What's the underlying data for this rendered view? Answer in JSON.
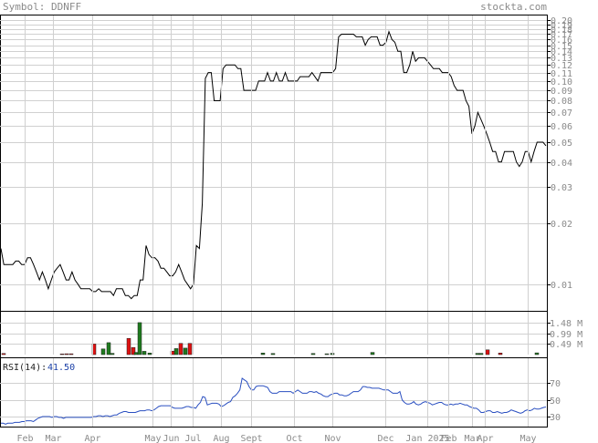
{
  "header": {
    "symbol_text": "Symbol: DDNFF",
    "site_text": "stockta.com"
  },
  "colors": {
    "price_line": "#000000",
    "grid": "#d0d0d0",
    "volume_up": "#1e7a1e",
    "volume_down": "#dd1111",
    "rsi_line": "#2a4fc0",
    "text": "#8a8a8a"
  },
  "chart_data": [
    {
      "type": "line",
      "panel": "price",
      "y_scale": "log",
      "ylim": [
        0.0074,
        0.21
      ],
      "y_ticks": [
        "0.01",
        "0.02",
        "0.03",
        "0.04",
        "0.05",
        "0.06",
        "0.07",
        "0.08",
        "0.09",
        "0.10",
        "0.11",
        "0.12",
        "0.13",
        "0.14",
        "0.15",
        "0.16",
        "0.17",
        "0.18",
        "0.19",
        "0.20"
      ],
      "x_labels": [
        "Feb",
        "Mar",
        "Apr",
        "May",
        "Jun",
        "Jul",
        "Aug",
        "Sept",
        "Oct",
        "Nov",
        "Dec",
        "Jan 2025",
        "Feb",
        "Mar",
        "Apr",
        "May"
      ],
      "grid": true,
      "series": [
        {
          "values": [
            0.015,
            0.0125,
            0.0125,
            0.0125,
            0.0125,
            0.013,
            0.013,
            0.0125,
            0.0125,
            0.0135,
            0.0135,
            0.0125,
            0.0115,
            0.0105,
            0.0115,
            0.0105,
            0.0095,
            0.0105,
            0.0115,
            0.012,
            0.0125,
            0.0115,
            0.0105,
            0.0105,
            0.0115,
            0.0105,
            0.01,
            0.0095,
            0.0095,
            0.0095,
            0.0095,
            0.0092,
            0.0092,
            0.0095,
            0.0092,
            0.0092,
            0.0092,
            0.0092,
            0.0088,
            0.0095,
            0.0095,
            0.0095,
            0.0088,
            0.0088,
            0.0085,
            0.0088,
            0.0088,
            0.0105,
            0.0105,
            0.0155,
            0.014,
            0.0135,
            0.0135,
            0.013,
            0.012,
            0.012,
            0.0115,
            0.011,
            0.011,
            0.0115,
            0.0125,
            0.0115,
            0.0105,
            0.01,
            0.0095,
            0.01,
            0.0155,
            0.015,
            0.025,
            0.103,
            0.11,
            0.11,
            0.08,
            0.08,
            0.08,
            0.115,
            0.12,
            0.12,
            0.12,
            0.12,
            0.115,
            0.115,
            0.09,
            0.09,
            0.09,
            0.09,
            0.09,
            0.1,
            0.1,
            0.1,
            0.11,
            0.1,
            0.1,
            0.11,
            0.1,
            0.1,
            0.11,
            0.1,
            0.1,
            0.1,
            0.1,
            0.105,
            0.105,
            0.105,
            0.105,
            0.11,
            0.105,
            0.1,
            0.11,
            0.11,
            0.11,
            0.11,
            0.11,
            0.115,
            0.165,
            0.17,
            0.17,
            0.17,
            0.17,
            0.17,
            0.165,
            0.165,
            0.165,
            0.15,
            0.16,
            0.165,
            0.165,
            0.165,
            0.15,
            0.15,
            0.155,
            0.175,
            0.16,
            0.155,
            0.14,
            0.14,
            0.11,
            0.11,
            0.12,
            0.14,
            0.125,
            0.13,
            0.13,
            0.13,
            0.125,
            0.12,
            0.115,
            0.115,
            0.115,
            0.11,
            0.11,
            0.11,
            0.105,
            0.095,
            0.09,
            0.09,
            0.09,
            0.08,
            0.075,
            0.055,
            0.06,
            0.07,
            0.065,
            0.06,
            0.055,
            0.05,
            0.045,
            0.045,
            0.04,
            0.04,
            0.045,
            0.045,
            0.045,
            0.045,
            0.04,
            0.038,
            0.04,
            0.045,
            0.045,
            0.04,
            0.045,
            0.05,
            0.05,
            0.05,
            0.048
          ]
        }
      ]
    },
    {
      "type": "bar",
      "panel": "volume",
      "y_ticks": [
        "1.48 M",
        "0.99 M",
        "0.49 M"
      ],
      "ylim": [
        0,
        1.98
      ],
      "unit": "M",
      "bars": [
        {
          "month": "Feb",
          "value": 0.05,
          "dir": "down"
        },
        {
          "month": "Mar",
          "value": 0.03,
          "dir": "down"
        },
        {
          "month": "Mar",
          "value": 0.04,
          "dir": "down"
        },
        {
          "month": "Mar",
          "value": 0.04,
          "dir": "down"
        },
        {
          "month": "Apr",
          "value": 0.49,
          "dir": "down"
        },
        {
          "month": "Apr",
          "value": 0.26,
          "dir": "up"
        },
        {
          "month": "Apr",
          "value": 0.55,
          "dir": "up"
        },
        {
          "month": "Apr",
          "value": 0.06,
          "dir": "up"
        },
        {
          "month": "Apr",
          "value": 0.75,
          "dir": "down"
        },
        {
          "month": "Apr",
          "value": 0.33,
          "dir": "down"
        },
        {
          "month": "May",
          "value": 0.1,
          "dir": "up"
        },
        {
          "month": "May",
          "value": 1.48,
          "dir": "up"
        },
        {
          "month": "May",
          "value": 0.15,
          "dir": "up"
        },
        {
          "month": "May",
          "value": 0.07,
          "dir": "up"
        },
        {
          "month": "Jun",
          "value": 0.16,
          "dir": "down"
        },
        {
          "month": "Jun",
          "value": 0.28,
          "dir": "up"
        },
        {
          "month": "Jun",
          "value": 0.52,
          "dir": "down"
        },
        {
          "month": "Jun",
          "value": 0.3,
          "dir": "up"
        },
        {
          "month": "Jul",
          "value": 0.52,
          "dir": "down"
        },
        {
          "month": "Sept",
          "value": 0.07,
          "dir": "up"
        },
        {
          "month": "Sept",
          "value": 0.05,
          "dir": "up"
        },
        {
          "month": "Oct",
          "value": 0.05,
          "dir": "up"
        },
        {
          "month": "Nov",
          "value": 0.04,
          "dir": "up"
        },
        {
          "month": "Nov",
          "value": 0.06,
          "dir": "up"
        },
        {
          "month": "Dec",
          "value": 0.1,
          "dir": "up"
        },
        {
          "month": "Apr",
          "value": 0.06,
          "dir": "up"
        },
        {
          "month": "Apr",
          "value": 0.06,
          "dir": "up"
        },
        {
          "month": "Apr",
          "value": 0.22,
          "dir": "down"
        },
        {
          "month": "Apr",
          "value": 0.07,
          "dir": "down"
        },
        {
          "month": "May",
          "value": 0.08,
          "dir": "up"
        }
      ]
    },
    {
      "type": "line",
      "panel": "rsi",
      "label": "RSI(14):",
      "current_value": "41.50",
      "ylim": [
        18,
        100
      ],
      "y_ticks": [
        "70",
        "50",
        "30"
      ],
      "series": [
        {
          "values": [
            22,
            22,
            21,
            22,
            22,
            22,
            23,
            23,
            23,
            24,
            24,
            25,
            25,
            25,
            24,
            26,
            28,
            29,
            30,
            30,
            30,
            30,
            29,
            30,
            30,
            29,
            29,
            28,
            29,
            29,
            29,
            29,
            29,
            29,
            29,
            29,
            29,
            29,
            29,
            29,
            30,
            30,
            31,
            31,
            30,
            31,
            31,
            30,
            31,
            32,
            32,
            34,
            35,
            36,
            36,
            35,
            35,
            35,
            35,
            36,
            37,
            37,
            37,
            38,
            38,
            37,
            38,
            40,
            42,
            43,
            43,
            43,
            43,
            43,
            41,
            40,
            40,
            40,
            40,
            41,
            42,
            42,
            41,
            41,
            40,
            44,
            47,
            54,
            53,
            44,
            45,
            46,
            46,
            46,
            45,
            42,
            43,
            45,
            47,
            48,
            53,
            55,
            58,
            62,
            76,
            74,
            72,
            66,
            62,
            62,
            66,
            67,
            67,
            67,
            66,
            65,
            60,
            58,
            58,
            58,
            60,
            60,
            60,
            60,
            60,
            60,
            58,
            60,
            62,
            60,
            58,
            58,
            58,
            60,
            60,
            59,
            60,
            58,
            57,
            55,
            54,
            54,
            56,
            57,
            58,
            58,
            56,
            56,
            55,
            55,
            56,
            58,
            60,
            60,
            60,
            62,
            66,
            66,
            65,
            65,
            64,
            64,
            64,
            64,
            63,
            62,
            62,
            62,
            60,
            58,
            58,
            58,
            60,
            50,
            47,
            45,
            45,
            46,
            48,
            45,
            44,
            45,
            47,
            48,
            47,
            46,
            44,
            45,
            46,
            47,
            47,
            45,
            44,
            44,
            45,
            44,
            45,
            45,
            46,
            45,
            44,
            44,
            42,
            41,
            40,
            40,
            38,
            35,
            35,
            36,
            37,
            37,
            35,
            35,
            36,
            35,
            34,
            35,
            35,
            36,
            38,
            37,
            36,
            35,
            34,
            35,
            37,
            38,
            37,
            38,
            40,
            39,
            39,
            40,
            41,
            41.5
          ]
        }
      ]
    }
  ]
}
